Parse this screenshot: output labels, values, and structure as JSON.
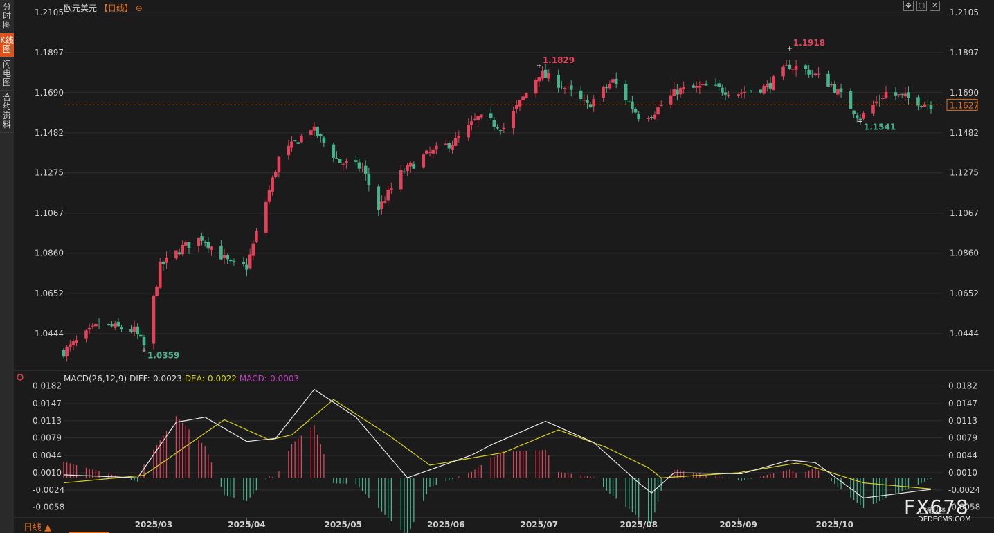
{
  "sidebar": {
    "tabs": [
      {
        "label": "分时图",
        "active": false
      },
      {
        "label": "K线图",
        "active": true
      },
      {
        "label": "闪电图",
        "active": false
      },
      {
        "label": "合约资料",
        "active": false
      }
    ]
  },
  "header": {
    "symbol": "欧元美元",
    "period": "【日线】",
    "period_icon": "circle-minus-icon"
  },
  "toolbar": {
    "icons": [
      "crosshair-icon",
      "window-icon",
      "close-icon"
    ],
    "glyphs": [
      "✥",
      "▢",
      "✕"
    ]
  },
  "colors": {
    "up": "#e2435a",
    "down": "#46b38c",
    "grid": "#2f2f2f",
    "axis_text": "#d0d0d0",
    "dif": "#e8e8e8",
    "dea": "#d7d21c",
    "macd": "#c040c0",
    "current": "#e07020"
  },
  "main_axis": {
    "ticks": [
      "1.2105",
      "1.1897",
      "1.1690",
      "1.1482",
      "1.1275",
      "1.1067",
      "1.0860",
      "1.0652",
      "1.0444"
    ]
  },
  "macd_axis": {
    "ticks": [
      "0.0182",
      "0.0147",
      "0.0113",
      "0.0079",
      "0.0044",
      "0.0010",
      "-0.0024",
      "-0.0058"
    ]
  },
  "x_axis": {
    "labels": [
      "2025/03",
      "2025/04",
      "2025/05",
      "2025/06",
      "2025/07",
      "2025/08",
      "2025/09",
      "2025/10"
    ]
  },
  "macd_legend": {
    "name": "MACD(26,12,9)",
    "dif": "DIFF:-0.0023",
    "dea": "DEA:-0.0022",
    "macd": "MACD:-0.0003"
  },
  "current_price": {
    "value": 1.1627,
    "label": "1.1627"
  },
  "footer": {
    "period_button": "日线 ▲"
  },
  "watermark": {
    "text": "FX678",
    "sub1": "汇通财经",
    "sub2": "DEDECMS.COM"
  },
  "chart_data": {
    "type": "candlestick",
    "start_date": "2025-02-03",
    "end_date": "2025-10-31",
    "ylim": [
      1.029,
      1.214
    ],
    "x_ticks": [
      "2025-03-03",
      "2025-04-01",
      "2025-05-01",
      "2025-06-02",
      "2025-07-01",
      "2025-08-01",
      "2025-09-01",
      "2025-10-01"
    ],
    "annotations": [
      {
        "date": "2025-02-28",
        "value": 1.0359,
        "label": "1.0359",
        "type": "low"
      },
      {
        "date": "2025-07-01",
        "value": 1.1829,
        "label": "1.1829",
        "type": "high"
      },
      {
        "date": "2025-09-17",
        "value": 1.1918,
        "label": "1.1918",
        "type": "high"
      },
      {
        "date": "2025-10-09",
        "value": 1.1541,
        "label": "1.1541",
        "type": "low"
      }
    ],
    "close_anchors": [
      [
        "2025-02-03",
        1.035
      ],
      [
        "2025-02-14",
        1.049
      ],
      [
        "2025-02-25",
        1.046
      ],
      [
        "2025-02-28",
        1.038
      ],
      [
        "2025-03-05",
        1.079
      ],
      [
        "2025-03-12",
        1.089
      ],
      [
        "2025-03-18",
        1.094
      ],
      [
        "2025-03-27",
        1.08
      ],
      [
        "2025-04-01",
        1.079
      ],
      [
        "2025-04-04",
        1.096
      ],
      [
        "2025-04-11",
        1.135
      ],
      [
        "2025-04-21",
        1.151
      ],
      [
        "2025-04-30",
        1.133
      ],
      [
        "2025-05-07",
        1.13
      ],
      [
        "2025-05-12",
        1.109
      ],
      [
        "2025-05-19",
        1.127
      ],
      [
        "2025-05-26",
        1.136
      ],
      [
        "2025-06-05",
        1.144
      ],
      [
        "2025-06-12",
        1.156
      ],
      [
        "2025-06-20",
        1.151
      ],
      [
        "2025-07-01",
        1.179
      ],
      [
        "2025-07-08",
        1.173
      ],
      [
        "2025-07-16",
        1.162
      ],
      [
        "2025-07-24",
        1.175
      ],
      [
        "2025-08-01",
        1.157
      ],
      [
        "2025-08-05",
        1.158
      ],
      [
        "2025-08-13",
        1.17
      ],
      [
        "2025-08-22",
        1.172
      ],
      [
        "2025-09-01",
        1.169
      ],
      [
        "2025-09-10",
        1.172
      ],
      [
        "2025-09-17",
        1.183
      ],
      [
        "2025-09-23",
        1.18
      ],
      [
        "2025-09-30",
        1.173
      ],
      [
        "2025-10-09",
        1.156
      ],
      [
        "2025-10-17",
        1.169
      ],
      [
        "2025-10-31",
        1.1627
      ]
    ],
    "macd": {
      "dif_anchors": [
        [
          "2025-02-03",
          0.0006
        ],
        [
          "2025-02-26",
          0.0
        ],
        [
          "2025-03-10",
          0.011
        ],
        [
          "2025-03-19",
          0.012
        ],
        [
          "2025-04-01",
          0.0072
        ],
        [
          "2025-04-10",
          0.0078
        ],
        [
          "2025-04-22",
          0.0175
        ],
        [
          "2025-05-05",
          0.012
        ],
        [
          "2025-05-21",
          0.0
        ],
        [
          "2025-06-10",
          0.0045
        ],
        [
          "2025-06-16",
          0.0065
        ],
        [
          "2025-07-03",
          0.0112
        ],
        [
          "2025-07-18",
          0.007
        ],
        [
          "2025-08-01",
          -0.001
        ],
        [
          "2025-08-05",
          -0.003
        ],
        [
          "2025-08-12",
          0.001
        ],
        [
          "2025-09-02",
          0.0008
        ],
        [
          "2025-09-17",
          0.0035
        ],
        [
          "2025-09-25",
          0.003
        ],
        [
          "2025-10-10",
          -0.004
        ],
        [
          "2025-10-31",
          -0.0023
        ]
      ],
      "dea_anchors": [
        [
          "2025-02-03",
          -0.001
        ],
        [
          "2025-02-28",
          0.0005
        ],
        [
          "2025-03-25",
          0.0115
        ],
        [
          "2025-04-08",
          0.0075
        ],
        [
          "2025-04-15",
          0.0085
        ],
        [
          "2025-04-28",
          0.0155
        ],
        [
          "2025-05-15",
          0.0085
        ],
        [
          "2025-05-28",
          0.0025
        ],
        [
          "2025-06-20",
          0.005
        ],
        [
          "2025-07-07",
          0.0095
        ],
        [
          "2025-07-22",
          0.006
        ],
        [
          "2025-08-04",
          0.002
        ],
        [
          "2025-08-08",
          0.0
        ],
        [
          "2025-09-01",
          0.001
        ],
        [
          "2025-09-20",
          0.003
        ],
        [
          "2025-10-10",
          -0.001
        ],
        [
          "2025-10-31",
          -0.0022
        ]
      ]
    }
  }
}
